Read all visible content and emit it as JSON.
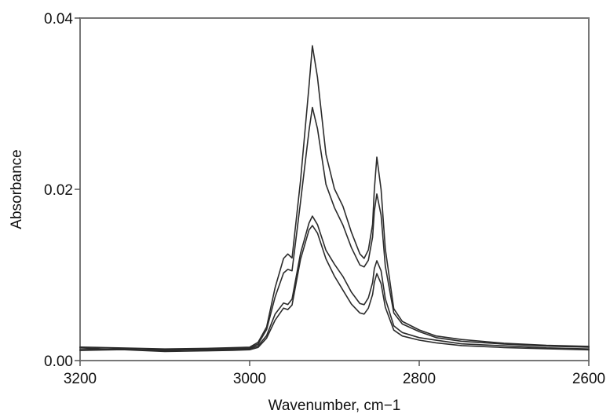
{
  "chart_data": {
    "type": "line",
    "title": "",
    "xlabel": "Wavenumber, cm−1",
    "ylabel": "Absorbance",
    "xlim": [
      3200,
      2600
    ],
    "ylim": [
      0,
      0.04
    ],
    "x_reversed": true,
    "grid": false,
    "x_ticks": [
      3200,
      3000,
      2800,
      2600
    ],
    "x_tick_labels": [
      "3200",
      "3000",
      "2800",
      "2600"
    ],
    "y_ticks": [
      0,
      0.02,
      0.04
    ],
    "y_tick_labels": [
      "0.00",
      "0.02",
      "0.04"
    ],
    "line_color": "#2b2b2b",
    "series": [
      {
        "x": [
          3200,
          3150,
          3100,
          3050,
          3020,
          3000,
          2990,
          2980,
          2970,
          2960,
          2955,
          2950,
          2940,
          2930,
          2926,
          2920,
          2910,
          2900,
          2890,
          2880,
          2870,
          2865,
          2860,
          2855,
          2853,
          2850,
          2845,
          2840,
          2830,
          2820,
          2800,
          2780,
          2750,
          2700,
          2650,
          2600
        ],
        "values": [
          0.0015,
          0.0014,
          0.0013,
          0.0014,
          0.0015,
          0.0016,
          0.0022,
          0.004,
          0.0086,
          0.012,
          0.0125,
          0.012,
          0.021,
          0.032,
          0.0367,
          0.033,
          0.024,
          0.02,
          0.018,
          0.015,
          0.0125,
          0.012,
          0.013,
          0.016,
          0.02,
          0.0238,
          0.02,
          0.013,
          0.006,
          0.0045,
          0.0035,
          0.0028,
          0.0024,
          0.002,
          0.0018,
          0.0017
        ]
      },
      {
        "x": [
          3200,
          3150,
          3100,
          3050,
          3020,
          3000,
          2990,
          2980,
          2970,
          2960,
          2955,
          2950,
          2940,
          2930,
          2926,
          2920,
          2910,
          2900,
          2890,
          2880,
          2870,
          2865,
          2860,
          2855,
          2853,
          2850,
          2845,
          2840,
          2830,
          2820,
          2800,
          2780,
          2750,
          2700,
          2650,
          2600
        ],
        "values": [
          0.0012,
          0.0013,
          0.0011,
          0.0013,
          0.0014,
          0.0015,
          0.002,
          0.0037,
          0.0075,
          0.0103,
          0.0107,
          0.0105,
          0.0185,
          0.0268,
          0.0295,
          0.027,
          0.0205,
          0.0178,
          0.0158,
          0.0132,
          0.0112,
          0.011,
          0.0118,
          0.0145,
          0.0175,
          0.0195,
          0.017,
          0.011,
          0.0055,
          0.0042,
          0.0033,
          0.0026,
          0.0022,
          0.0019,
          0.0017,
          0.0016
        ]
      },
      {
        "x": [
          3200,
          3150,
          3100,
          3050,
          3020,
          3000,
          2990,
          2980,
          2970,
          2960,
          2955,
          2950,
          2940,
          2930,
          2926,
          2920,
          2910,
          2900,
          2890,
          2880,
          2870,
          2865,
          2860,
          2855,
          2853,
          2850,
          2845,
          2840,
          2830,
          2820,
          2800,
          2780,
          2750,
          2700,
          2650,
          2600
        ],
        "values": [
          0.0014,
          0.0012,
          0.0012,
          0.0012,
          0.0013,
          0.0014,
          0.0018,
          0.003,
          0.0055,
          0.0068,
          0.0066,
          0.0072,
          0.0125,
          0.016,
          0.0168,
          0.0158,
          0.0128,
          0.0112,
          0.0098,
          0.008,
          0.0067,
          0.0066,
          0.0074,
          0.0092,
          0.0108,
          0.0117,
          0.0105,
          0.0072,
          0.004,
          0.0032,
          0.0026,
          0.0023,
          0.0019,
          0.0017,
          0.0015,
          0.0014
        ]
      },
      {
        "x": [
          3200,
          3150,
          3100,
          3050,
          3020,
          3000,
          2990,
          2980,
          2970,
          2960,
          2955,
          2950,
          2940,
          2930,
          2926,
          2920,
          2910,
          2900,
          2890,
          2880,
          2870,
          2865,
          2860,
          2855,
          2853,
          2850,
          2845,
          2840,
          2830,
          2820,
          2800,
          2780,
          2750,
          2700,
          2650,
          2600
        ],
        "values": [
          0.0011,
          0.0012,
          0.001,
          0.0011,
          0.0012,
          0.0013,
          0.0016,
          0.0027,
          0.0048,
          0.0062,
          0.006,
          0.0065,
          0.0118,
          0.0152,
          0.0157,
          0.0148,
          0.0118,
          0.0098,
          0.0082,
          0.0066,
          0.0056,
          0.0055,
          0.0062,
          0.0078,
          0.0092,
          0.0102,
          0.009,
          0.0062,
          0.0035,
          0.0028,
          0.0023,
          0.002,
          0.0017,
          0.0015,
          0.0014,
          0.0013
        ]
      }
    ]
  }
}
